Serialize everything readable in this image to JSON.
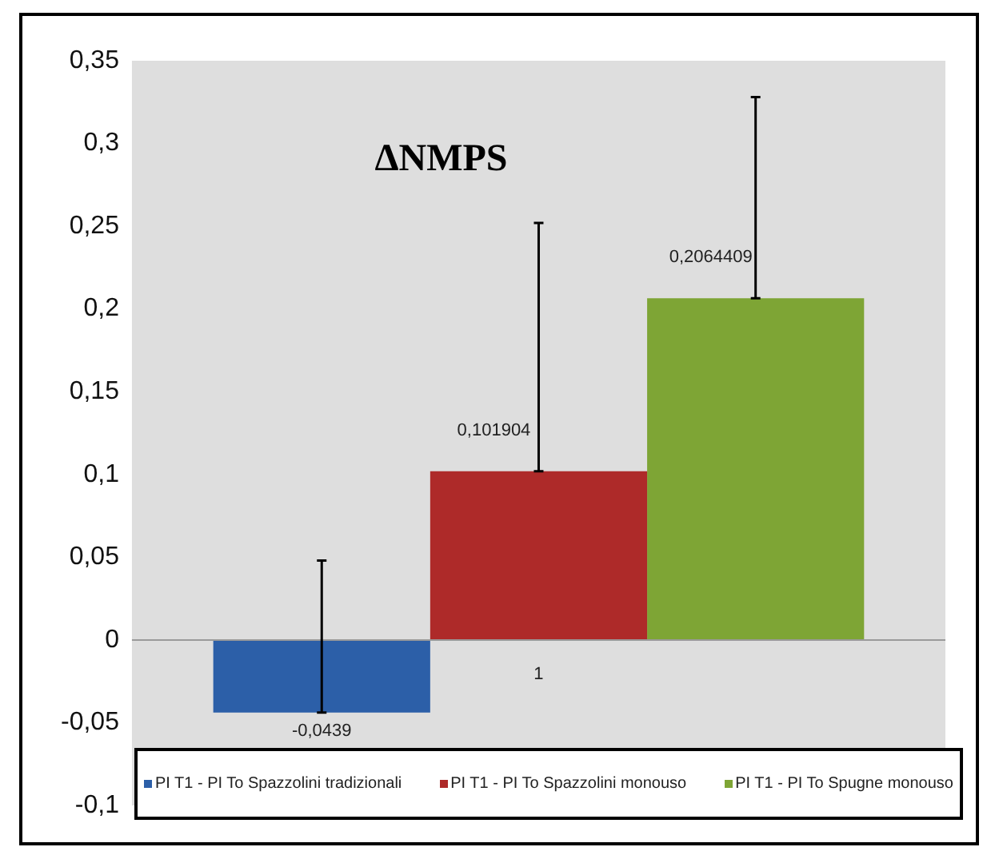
{
  "chart_data": {
    "type": "bar",
    "title": "ΔNMPS",
    "categories": [
      "1"
    ],
    "series": [
      {
        "name": "PI T1 - PI To Spazzolini tradizionali",
        "color": "#2c5fa8",
        "values": [
          -0.0439
        ],
        "errors": [
          [
            -0.0439,
            0.048
          ]
        ],
        "value_labels": [
          "-0,0439"
        ]
      },
      {
        "name": "PI T1 - PI To Spazzolini monouso",
        "color": "#ae2a29",
        "values": [
          0.101904
        ],
        "errors": [
          [
            0.101904,
            0.252
          ]
        ],
        "value_labels": [
          "0,101904"
        ]
      },
      {
        "name": "PI T1 - PI To Spugne monouso",
        "color": "#7ea535",
        "values": [
          0.2064409
        ],
        "errors": [
          [
            0.2064409,
            0.328
          ]
        ],
        "value_labels": [
          "0,2064409"
        ]
      }
    ],
    "ylim": [
      -0.1,
      0.35
    ],
    "yticks": [
      {
        "value": -0.1,
        "label": "-0,1"
      },
      {
        "value": -0.05,
        "label": "-0,05"
      },
      0,
      {
        "value": 0.05,
        "label": "0,05"
      },
      {
        "value": 0.1,
        "label": "0,1"
      },
      {
        "value": 0.15,
        "label": "0,15"
      },
      {
        "value": 0.2,
        "label": "0,2"
      },
      {
        "value": 0.25,
        "label": "0,25"
      },
      {
        "value": 0.3,
        "label": "0,3"
      },
      {
        "value": 0.35,
        "label": "0,35"
      }
    ],
    "grid": false,
    "legend": "bottom",
    "ref_lines": [
      {
        "axis": "y",
        "value": 0,
        "color": "#9a9a9a"
      }
    ]
  }
}
